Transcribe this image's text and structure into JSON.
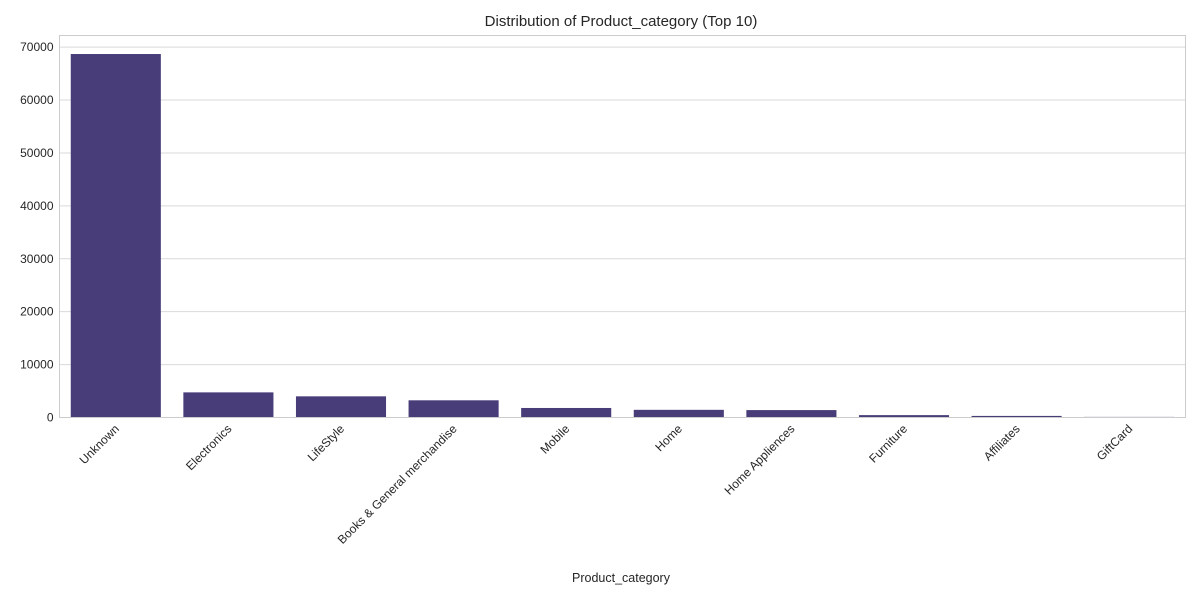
{
  "chart_data": {
    "type": "bar",
    "title": "Distribution of Product_category (Top 10)",
    "xlabel": "Product_category",
    "ylabel": "",
    "categories": [
      "Unknown",
      "Electronics",
      "LifeStyle",
      "Books & General merchandise",
      "Mobile",
      "Home",
      "Home Appliences",
      "Furniture",
      "Affiliates",
      "GiftCard"
    ],
    "values": [
      68700,
      4750,
      4000,
      3250,
      1800,
      1450,
      1400,
      450,
      300,
      50
    ],
    "yticks": [
      0,
      10000,
      20000,
      30000,
      40000,
      50000,
      60000,
      70000
    ],
    "ylim": [
      0,
      72200
    ],
    "grid": "horizontal",
    "bar_color": "#483d78"
  }
}
